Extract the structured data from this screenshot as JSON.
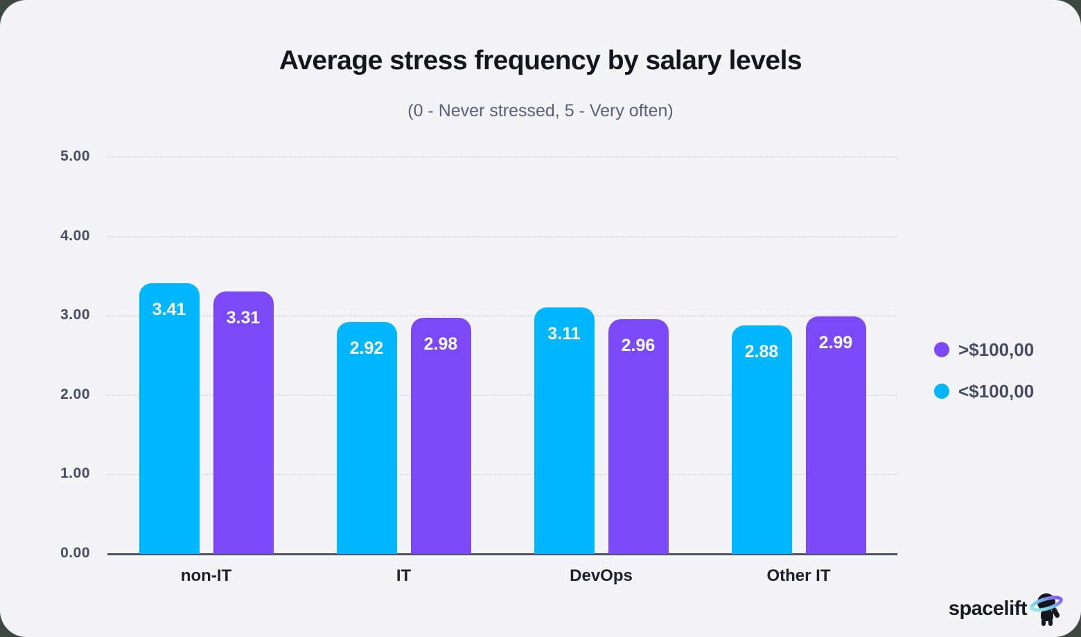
{
  "chart_data": {
    "type": "bar",
    "title": "Average stress frequency by salary levels",
    "subtitle": "(0 - Never stressed, 5 - Very often)",
    "categories": [
      "non-IT",
      "IT",
      "DevOps",
      "Other IT"
    ],
    "series": [
      {
        "name": "<$100,00",
        "color": "#00B6FF",
        "values": [
          3.41,
          2.92,
          3.11,
          2.88
        ]
      },
      {
        "name": ">$100,00",
        "color": "#7B49F7",
        "values": [
          3.31,
          2.98,
          2.96,
          2.99
        ]
      }
    ],
    "ylim": [
      0,
      5
    ],
    "y_ticks": [
      0,
      1,
      2,
      3,
      4,
      5
    ],
    "y_tick_decimals": 2,
    "grid": true,
    "legend_position": "right",
    "value_labels": true
  },
  "legend": {
    "items": [
      {
        "label": ">$100,00",
        "color": "#7B49F7"
      },
      {
        "label": "<$100,00",
        "color": "#00B6FF"
      }
    ]
  },
  "footer": {
    "brand": "spacelift"
  },
  "colors": {
    "card_background": "#F4F4F6",
    "outer_background": "#3C4840",
    "axis": "#50506A",
    "gridline": "#D8D8E3",
    "title_text": "#15151E",
    "subtitle_text": "#5D5D7B",
    "tick_text": "#4A4A64",
    "bar_value_text": "#FFFFFF"
  }
}
